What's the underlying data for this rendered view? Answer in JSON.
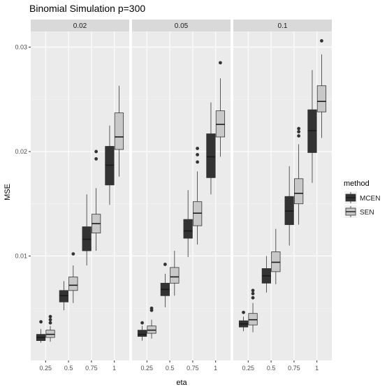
{
  "chart_data": {
    "type": "boxplot",
    "title": "Binomial Simulation p=300",
    "xlabel": "eta",
    "ylabel": "MSE",
    "x_categories": [
      "0.25",
      "0.5",
      "0.75",
      "1"
    ],
    "ylim": [
      0.0,
      0.0315
    ],
    "yticks": [
      0.01,
      0.02,
      0.03
    ],
    "ytick_labels": [
      "0.01",
      "0.02",
      "0.03"
    ],
    "grid": true,
    "legend": {
      "title": "method",
      "position": "right",
      "entries": [
        {
          "name": "MCEN",
          "color": "#333333"
        },
        {
          "name": "SEN",
          "color": "#c8c8c8"
        }
      ]
    },
    "facets": [
      {
        "label": "0.02",
        "series": [
          {
            "name": "MCEN",
            "boxes": [
              {
                "x": "0.25",
                "min": 0.0017,
                "q1": 0.0019,
                "median": 0.0022,
                "q3": 0.0025,
                "max": 0.003,
                "outliers": [
                  0.0037
                ]
              },
              {
                "x": "0.5",
                "min": 0.0048,
                "q1": 0.0056,
                "median": 0.0062,
                "q3": 0.0067,
                "max": 0.0076,
                "outliers": []
              },
              {
                "x": "0.75",
                "min": 0.0091,
                "q1": 0.0105,
                "median": 0.0116,
                "q3": 0.0128,
                "max": 0.0159,
                "outliers": []
              },
              {
                "x": "1",
                "min": 0.0149,
                "q1": 0.0168,
                "median": 0.0187,
                "q3": 0.0205,
                "max": 0.0225,
                "outliers": []
              }
            ]
          },
          {
            "name": "SEN",
            "boxes": [
              {
                "x": "0.25",
                "min": 0.0018,
                "q1": 0.0022,
                "median": 0.0025,
                "q3": 0.0029,
                "max": 0.0033,
                "outliers": [
                  0.0036,
                  0.0039,
                  0.0042
                ]
              },
              {
                "x": "0.5",
                "min": 0.0055,
                "q1": 0.0067,
                "median": 0.0072,
                "q3": 0.008,
                "max": 0.0091,
                "outliers": [
                  0.0102
                ]
              },
              {
                "x": "0.75",
                "min": 0.0105,
                "q1": 0.0122,
                "median": 0.0131,
                "q3": 0.014,
                "max": 0.0165,
                "outliers": [
                  0.0193,
                  0.02
                ]
              },
              {
                "x": "1",
                "min": 0.0176,
                "q1": 0.0202,
                "median": 0.0214,
                "q3": 0.0237,
                "max": 0.0263,
                "outliers": []
              }
            ]
          }
        ]
      },
      {
        "label": "0.05",
        "series": [
          {
            "name": "MCEN",
            "boxes": [
              {
                "x": "0.25",
                "min": 0.0019,
                "q1": 0.0023,
                "median": 0.0025,
                "q3": 0.0029,
                "max": 0.0033,
                "outliers": [
                  0.0036
                ]
              },
              {
                "x": "0.5",
                "min": 0.0051,
                "q1": 0.0062,
                "median": 0.0068,
                "q3": 0.0074,
                "max": 0.0083,
                "outliers": [
                  0.0092
                ]
              },
              {
                "x": "0.75",
                "min": 0.0099,
                "q1": 0.0117,
                "median": 0.0124,
                "q3": 0.0135,
                "max": 0.0163,
                "outliers": []
              },
              {
                "x": "1",
                "min": 0.0159,
                "q1": 0.0175,
                "median": 0.0195,
                "q3": 0.0217,
                "max": 0.0247,
                "outliers": []
              }
            ]
          },
          {
            "name": "SEN",
            "boxes": [
              {
                "x": "0.25",
                "min": 0.0021,
                "q1": 0.0026,
                "median": 0.0029,
                "q3": 0.0033,
                "max": 0.0039,
                "outliers": [
                  0.0048,
                  0.005
                ]
              },
              {
                "x": "0.5",
                "min": 0.0062,
                "q1": 0.0074,
                "median": 0.008,
                "q3": 0.0089,
                "max": 0.0105,
                "outliers": []
              },
              {
                "x": "0.75",
                "min": 0.0111,
                "q1": 0.0129,
                "median": 0.0141,
                "q3": 0.0152,
                "max": 0.0181,
                "outliers": [
                  0.019,
                  0.0197,
                  0.0203
                ]
              },
              {
                "x": "1",
                "min": 0.0195,
                "q1": 0.0214,
                "median": 0.0226,
                "q3": 0.0239,
                "max": 0.027,
                "outliers": [
                  0.0285
                ]
              }
            ]
          }
        ]
      },
      {
        "label": "0.1",
        "series": [
          {
            "name": "MCEN",
            "boxes": [
              {
                "x": "0.25",
                "min": 0.0028,
                "q1": 0.0032,
                "median": 0.0035,
                "q3": 0.0038,
                "max": 0.0042,
                "outliers": [
                  0.0046
                ]
              },
              {
                "x": "0.5",
                "min": 0.0065,
                "q1": 0.0074,
                "median": 0.0081,
                "q3": 0.0088,
                "max": 0.01,
                "outliers": []
              },
              {
                "x": "0.75",
                "min": 0.011,
                "q1": 0.013,
                "median": 0.0143,
                "q3": 0.0157,
                "max": 0.0186,
                "outliers": []
              },
              {
                "x": "1",
                "min": 0.017,
                "q1": 0.0199,
                "median": 0.022,
                "q3": 0.024,
                "max": 0.0278,
                "outliers": []
              }
            ]
          },
          {
            "name": "SEN",
            "boxes": [
              {
                "x": "0.25",
                "min": 0.0027,
                "q1": 0.0034,
                "median": 0.0039,
                "q3": 0.0045,
                "max": 0.0055,
                "outliers": [
                  0.006,
                  0.0064,
                  0.0067
                ]
              },
              {
                "x": "0.5",
                "min": 0.0073,
                "q1": 0.0085,
                "median": 0.0094,
                "q3": 0.0104,
                "max": 0.0126,
                "outliers": []
              },
              {
                "x": "0.75",
                "min": 0.013,
                "q1": 0.015,
                "median": 0.016,
                "q3": 0.0174,
                "max": 0.0207,
                "outliers": [
                  0.0215,
                  0.0219,
                  0.0222
                ]
              },
              {
                "x": "1",
                "min": 0.0213,
                "q1": 0.0238,
                "median": 0.0248,
                "q3": 0.0263,
                "max": 0.0293,
                "outliers": [
                  0.0306
                ]
              }
            ]
          }
        ]
      }
    ]
  }
}
